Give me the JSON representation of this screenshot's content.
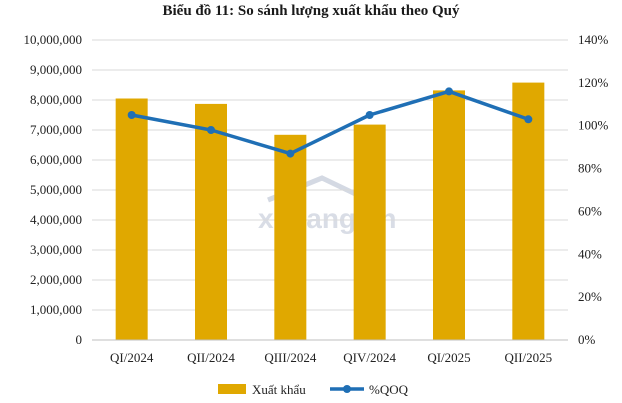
{
  "chart_data": {
    "type": "bar",
    "title": "Biểu đồ 11: So sánh lượng xuất khẩu theo Quý",
    "categories": [
      "QI/2024",
      "QII/2024",
      "QIII/2024",
      "QIV/2024",
      "QI/2025",
      "QII/2025"
    ],
    "series": [
      {
        "name": "Xuất khẩu",
        "type": "bar",
        "axis": "left",
        "color": "#e0a800",
        "values": [
          8050000,
          7870000,
          6840000,
          7180000,
          8320000,
          8580000
        ]
      },
      {
        "name": "%QOQ",
        "type": "line",
        "axis": "right",
        "color": "#1f6fb5",
        "values": [
          105,
          98,
          87,
          105,
          116,
          103
        ]
      }
    ],
    "ylim_left": [
      0,
      10000000
    ],
    "ylim_right": [
      0,
      140
    ],
    "y_ticks_left": [
      "0",
      "1,000,000",
      "2,000,000",
      "3,000,000",
      "4,000,000",
      "5,000,000",
      "6,000,000",
      "7,000,000",
      "8,000,000",
      "9,000,000",
      "10,000,000"
    ],
    "y_ticks_right": [
      "0%",
      "20%",
      "40%",
      "60%",
      "80%",
      "100%",
      "120%",
      "140%"
    ],
    "grid": true,
    "legend_position": "bottom",
    "watermark": "ximang.vn"
  }
}
